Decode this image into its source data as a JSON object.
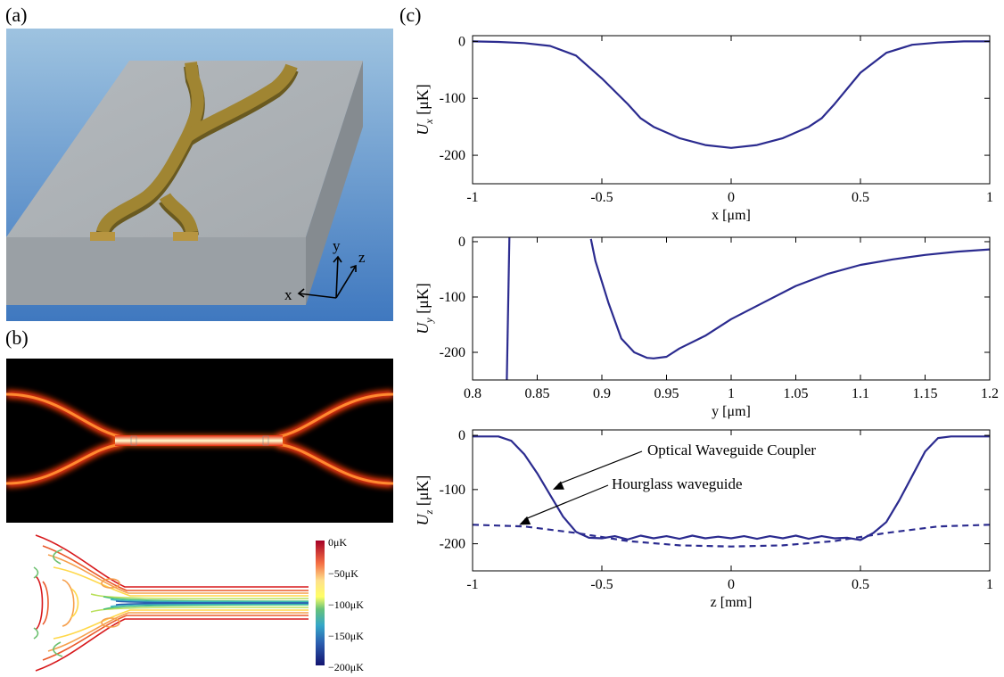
{
  "panels": {
    "a": {
      "label": "(a)",
      "axes": {
        "x": "x",
        "y": "y",
        "z": "z"
      }
    },
    "b": {
      "label": "(b)",
      "colorbar": {
        "ticks": [
          "0μK",
          "−50μK",
          "−100μK",
          "−150μK",
          "−200μK"
        ],
        "colors": [
          "#b2182b",
          "#e34a33",
          "#fdae61",
          "#ffff66",
          "#a6d96a",
          "#1a9850",
          "#41b6c4",
          "#2c7fb8",
          "#253494",
          "#1a1a8c"
        ]
      }
    },
    "c": {
      "label": "(c)"
    }
  },
  "chart_data": [
    {
      "type": "line",
      "xlabel": "x [μm]",
      "ylabel": "U",
      "ylabel_sub": "x",
      "ylabel_unit": "[μK]",
      "xlim": [
        -1,
        1
      ],
      "ylim": [
        -250,
        10
      ],
      "xticks": [
        "-1",
        "-0.5",
        "0",
        "0.5",
        "1"
      ],
      "yticks": [
        "0",
        "-100",
        "-200"
      ],
      "ytick_values": [
        0,
        -100,
        -200
      ],
      "xtick_values": [
        -1,
        -0.5,
        0,
        0.5,
        1
      ],
      "series": [
        {
          "color": "#2b2b8f",
          "dash": false,
          "x": [
            -1,
            -0.9,
            -0.8,
            -0.7,
            -0.6,
            -0.5,
            -0.4,
            -0.35,
            -0.3,
            -0.2,
            -0.1,
            0,
            0.1,
            0.2,
            0.3,
            0.35,
            0.4,
            0.5,
            0.6,
            0.7,
            0.8,
            0.9,
            1
          ],
          "y": [
            0,
            -1,
            -3,
            -8,
            -25,
            -65,
            -110,
            -135,
            -150,
            -170,
            -182,
            -187,
            -182,
            -170,
            -150,
            -135,
            -110,
            -55,
            -20,
            -6,
            -2,
            0,
            0
          ]
        }
      ]
    },
    {
      "type": "line",
      "xlabel": "y [μm]",
      "ylabel": "U",
      "ylabel_sub": "y",
      "ylabel_unit": "[μK]",
      "xlim": [
        0.8,
        1.2
      ],
      "ylim": [
        -250,
        8
      ],
      "xticks": [
        "0.8",
        "0.85",
        "0.9",
        "0.95",
        "1",
        "1.05",
        "1.1",
        "1.15",
        "1.2"
      ],
      "xtick_values": [
        0.8,
        0.85,
        0.9,
        0.95,
        1,
        1.05,
        1.1,
        1.15,
        1.2
      ],
      "yticks": [
        "0",
        "-100",
        "-200"
      ],
      "ytick_values": [
        0,
        -100,
        -200
      ],
      "series": [
        {
          "color": "#2b2b8f",
          "dash": false,
          "x": [
            0.8265,
            0.8285
          ],
          "y": [
            -250,
            8
          ]
        },
        {
          "color": "#2b2b8f",
          "dash": false,
          "x": [
            0.8915,
            0.895,
            0.905,
            0.915,
            0.925,
            0.935,
            0.94,
            0.95,
            0.96,
            0.98,
            1.0,
            1.025,
            1.05,
            1.075,
            1.1,
            1.125,
            1.15,
            1.175,
            1.2
          ],
          "y": [
            5,
            -35,
            -110,
            -175,
            -200,
            -210,
            -211,
            -208,
            -193,
            -170,
            -140,
            -110,
            -80,
            -58,
            -42,
            -32,
            -24,
            -18,
            -14
          ]
        }
      ]
    },
    {
      "type": "line",
      "xlabel": "z [mm]",
      "ylabel": "U",
      "ylabel_sub": "z",
      "ylabel_unit": "[μK]",
      "xlim": [
        -1,
        1
      ],
      "ylim": [
        -250,
        10
      ],
      "xticks": [
        "-1",
        "-0.5",
        "0",
        "0.5",
        "1"
      ],
      "xtick_values": [
        -1,
        -0.5,
        0,
        0.5,
        1
      ],
      "yticks": [
        "0",
        "-100",
        "-200"
      ],
      "ytick_values": [
        0,
        -100,
        -200
      ],
      "annotations": [
        "Optical Waveguide Coupler",
        "Hourglass waveguide"
      ],
      "series": [
        {
          "name": "Optical Waveguide Coupler",
          "color": "#2b2b8f",
          "dash": false,
          "x": [
            -1,
            -0.9,
            -0.85,
            -0.8,
            -0.75,
            -0.7,
            -0.65,
            -0.6,
            -0.55,
            -0.5,
            -0.45,
            -0.4,
            -0.35,
            -0.3,
            -0.25,
            -0.2,
            -0.15,
            -0.1,
            -0.05,
            0,
            0.05,
            0.1,
            0.15,
            0.2,
            0.25,
            0.3,
            0.35,
            0.4,
            0.45,
            0.5,
            0.55,
            0.6,
            0.65,
            0.7,
            0.75,
            0.8,
            0.85,
            0.9,
            1
          ],
          "y": [
            -2,
            -2,
            -10,
            -35,
            -70,
            -110,
            -150,
            -178,
            -189,
            -190,
            -186,
            -192,
            -185,
            -190,
            -186,
            -191,
            -185,
            -190,
            -187,
            -190,
            -186,
            -191,
            -186,
            -190,
            -185,
            -191,
            -186,
            -190,
            -189,
            -193,
            -180,
            -160,
            -120,
            -75,
            -30,
            -5,
            -2,
            -2,
            -2
          ]
        },
        {
          "name": "Hourglass waveguide",
          "color": "#2b2b8f",
          "dash": true,
          "x": [
            -1,
            -0.8,
            -0.6,
            -0.4,
            -0.2,
            0,
            0.2,
            0.4,
            0.6,
            0.8,
            1
          ],
          "y": [
            -165,
            -168,
            -180,
            -195,
            -203,
            -205,
            -203,
            -195,
            -180,
            -168,
            -165
          ]
        }
      ]
    }
  ]
}
